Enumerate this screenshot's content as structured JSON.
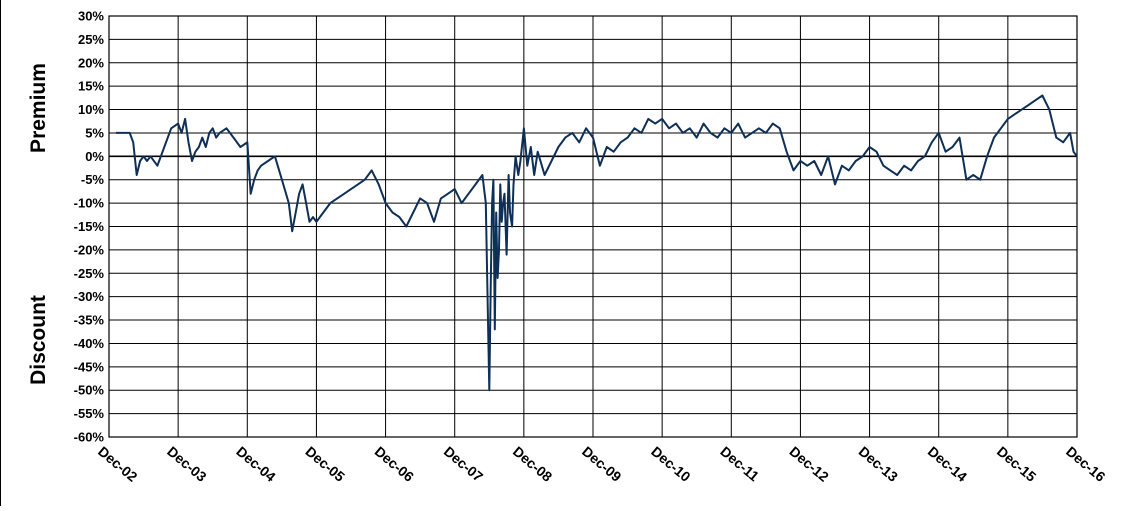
{
  "chart_data": {
    "type": "line",
    "title": "",
    "ylabel_top": "Premium",
    "ylabel_bottom": "Discount",
    "xlabel": "",
    "ylim": [
      -60,
      30
    ],
    "xlim": [
      0,
      14
    ],
    "grid": true,
    "legend": "none",
    "colors": {
      "line": "#0e2f56",
      "grid": "#000000",
      "zero_line": "#000000"
    },
    "y_ticks": [
      "30%",
      "25%",
      "20%",
      "15%",
      "10%",
      "5%",
      "0%",
      "-5%",
      "-10%",
      "-15%",
      "-20%",
      "-25%",
      "-30%",
      "-35%",
      "-40%",
      "-45%",
      "-50%",
      "-55%",
      "-60%"
    ],
    "y_tick_values": [
      30,
      25,
      20,
      15,
      10,
      5,
      0,
      -5,
      -10,
      -15,
      -20,
      -25,
      -30,
      -35,
      -40,
      -45,
      -50,
      -55,
      -60
    ],
    "x_ticks": [
      "Dec-02",
      "Dec-03",
      "Dec-04",
      "Dec-05",
      "Dec-06",
      "Dec-07",
      "Dec-08",
      "Dec-09",
      "Dec-10",
      "Dec-11",
      "Dec-12",
      "Dec-13",
      "Dec-14",
      "Dec-15",
      "Dec-16"
    ],
    "series": [
      {
        "x": [
          0.1,
          0.2,
          0.3,
          0.35,
          0.4,
          0.45,
          0.5,
          0.55,
          0.6,
          0.7,
          0.8,
          0.9,
          1.0,
          1.05,
          1.1,
          1.15,
          1.2,
          1.25,
          1.3,
          1.35,
          1.4,
          1.45,
          1.5,
          1.55,
          1.6,
          1.7,
          1.8,
          1.9,
          2.0,
          2.05,
          2.1,
          2.15,
          2.2,
          2.3,
          2.4,
          2.5,
          2.6,
          2.65,
          2.7,
          2.75,
          2.8,
          2.85,
          2.9,
          2.95,
          3.0,
          3.1,
          3.2,
          3.3,
          3.4,
          3.5,
          3.6,
          3.7,
          3.8,
          3.9,
          4.0,
          4.1,
          4.2,
          4.3,
          4.4,
          4.5,
          4.6,
          4.7,
          4.8,
          4.9,
          5.0,
          5.1,
          5.2,
          5.3,
          5.4,
          5.45,
          5.5,
          5.52,
          5.54,
          5.56,
          5.58,
          5.6,
          5.62,
          5.64,
          5.66,
          5.68,
          5.7,
          5.72,
          5.75,
          5.78,
          5.8,
          5.83,
          5.85,
          5.88,
          5.9,
          5.92,
          5.95,
          6.0,
          6.05,
          6.1,
          6.15,
          6.2,
          6.3,
          6.4,
          6.5,
          6.6,
          6.7,
          6.8,
          6.9,
          7.0,
          7.1,
          7.2,
          7.3,
          7.4,
          7.5,
          7.6,
          7.7,
          7.8,
          7.9,
          8.0,
          8.1,
          8.2,
          8.3,
          8.4,
          8.5,
          8.6,
          8.7,
          8.8,
          8.9,
          9.0,
          9.1,
          9.2,
          9.3,
          9.4,
          9.5,
          9.6,
          9.7,
          9.8,
          9.9,
          10.0,
          10.1,
          10.2,
          10.3,
          10.4,
          10.5,
          10.6,
          10.7,
          10.8,
          10.9,
          11.0,
          11.1,
          11.2,
          11.3,
          11.4,
          11.5,
          11.6,
          11.7,
          11.8,
          11.9,
          12.0,
          12.1,
          12.2,
          12.3,
          12.4,
          12.5,
          12.6,
          12.7,
          12.8,
          12.9,
          13.0,
          13.1,
          13.2,
          13.3,
          13.4,
          13.5,
          13.6,
          13.65,
          13.7,
          13.8,
          13.9,
          13.95,
          14.0
        ],
        "y": [
          5,
          5,
          5,
          3,
          -4,
          -1,
          0,
          -1,
          0,
          -2,
          2,
          6,
          7,
          5,
          8,
          3,
          -1,
          1,
          2,
          4,
          2,
          5,
          6,
          4,
          5,
          6,
          4,
          2,
          3,
          -8,
          -5,
          -3,
          -2,
          -1,
          0,
          -5,
          -10,
          -16,
          -12,
          -8,
          -6,
          -10,
          -14,
          -13,
          -14,
          -12,
          -10,
          -9,
          -8,
          -7,
          -6,
          -5,
          -3,
          -6,
          -10,
          -12,
          -13,
          -15,
          -12,
          -9,
          -10,
          -14,
          -9,
          -8,
          -7,
          -10,
          -8,
          -6,
          -4,
          -10,
          -50,
          -28,
          -10,
          -5,
          -37,
          -12,
          -26,
          -20,
          -6,
          -14,
          -10,
          -8,
          -21,
          -4,
          -12,
          -15,
          -6,
          0,
          -2,
          -4,
          -1,
          6,
          -2,
          2,
          -4,
          1,
          -4,
          -1,
          2,
          4,
          5,
          3,
          6,
          4,
          -2,
          2,
          1,
          3,
          4,
          6,
          5,
          8,
          7,
          8,
          6,
          7,
          5,
          6,
          4,
          7,
          5,
          4,
          6,
          5,
          7,
          4,
          5,
          6,
          5,
          7,
          6,
          1,
          -3,
          -1,
          -2,
          -1,
          -4,
          0,
          -6,
          -2,
          -3,
          -1,
          0,
          2,
          1,
          -2,
          -3,
          -4,
          -2,
          -3,
          -1,
          0,
          3,
          5,
          1,
          2,
          4,
          -5,
          -4,
          -5,
          0,
          4,
          6,
          8,
          9,
          10,
          11,
          12,
          13,
          10,
          7,
          4,
          3,
          5,
          1,
          0
        ]
      }
    ]
  }
}
